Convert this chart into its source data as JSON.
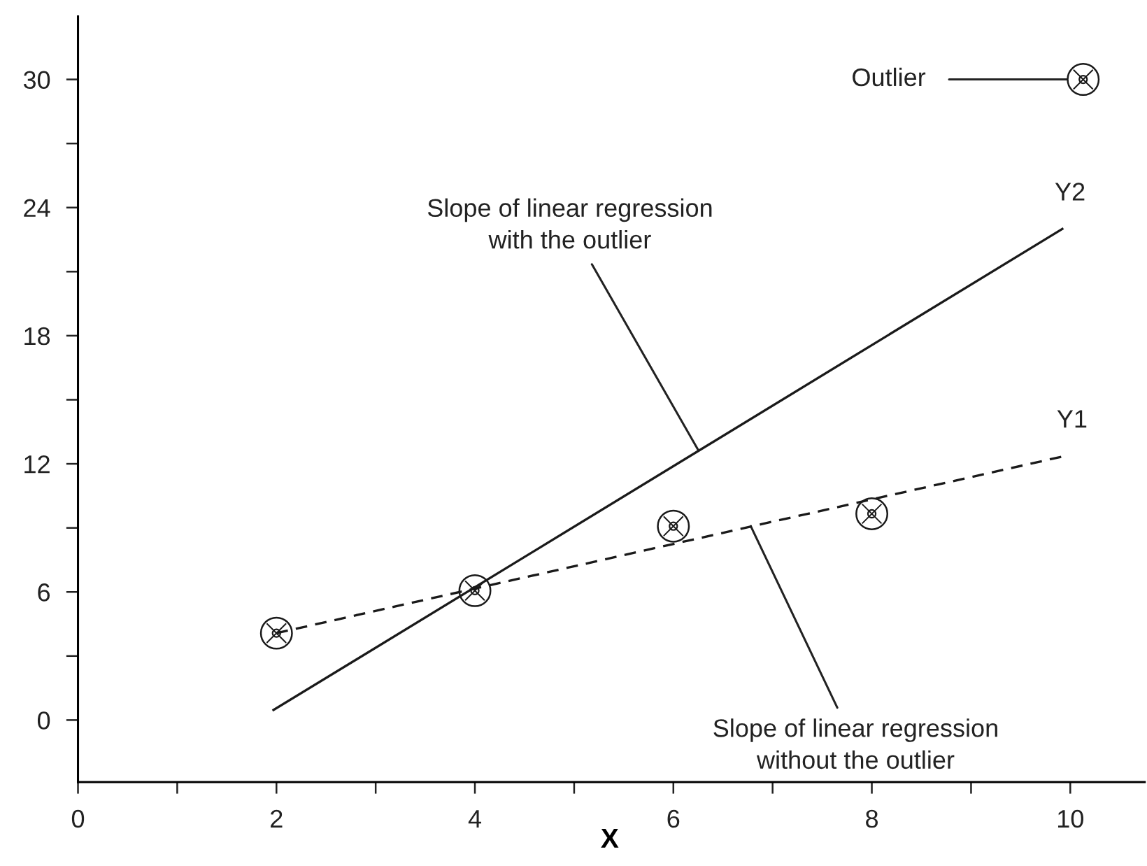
{
  "chart_data": {
    "type": "scatter",
    "xlabel": "X",
    "series": [
      {
        "type": "scatter",
        "x": [
          2,
          4,
          6,
          8,
          10.13
        ],
        "values": [
          4.07,
          6.06,
          9.08,
          9.66,
          30
        ],
        "color": "#1a1a1a",
        "marker": "circle"
      },
      {
        "type": "line",
        "name": "Y1",
        "x": [
          2,
          9.94
        ],
        "values": [
          4.07,
          12.36
        ],
        "color": "#1a1a1a",
        "line_style": "dashed"
      },
      {
        "type": "line",
        "name": "Y2",
        "x": [
          1.97,
          9.92
        ],
        "values": [
          0.47,
          23.0
        ],
        "color": "#1a1a1a",
        "line_style": "solid"
      }
    ],
    "annotations": [
      {
        "text": "Slope of linear regression\nwith the outlier",
        "x": 6.25,
        "y": 12.65
      },
      {
        "text": "Slope of linear regression\nwithout the outlier",
        "x": 6.78,
        "y": 9.08
      },
      {
        "text": "Outlier",
        "x": 10.13,
        "y": 30
      }
    ],
    "xlim": [
      0,
      10.75
    ],
    "ylim": [
      -2.9,
      32.95
    ],
    "xticks": [
      0,
      {
        "value": 1,
        "label": null
      },
      2,
      {
        "value": 3,
        "label": null
      },
      4,
      {
        "value": 5,
        "label": null
      },
      6,
      {
        "value": 7,
        "label": null
      },
      8,
      {
        "value": 9,
        "label": null
      },
      10
    ],
    "yticks": [
      0,
      {
        "value": 3,
        "label": null
      },
      6,
      {
        "value": 9,
        "label": null
      },
      12,
      {
        "value": 15,
        "label": null
      },
      18,
      {
        "value": 21,
        "label": null
      },
      24,
      {
        "value": 27,
        "label": null
      },
      30
    ],
    "grid": false,
    "legend": false
  }
}
